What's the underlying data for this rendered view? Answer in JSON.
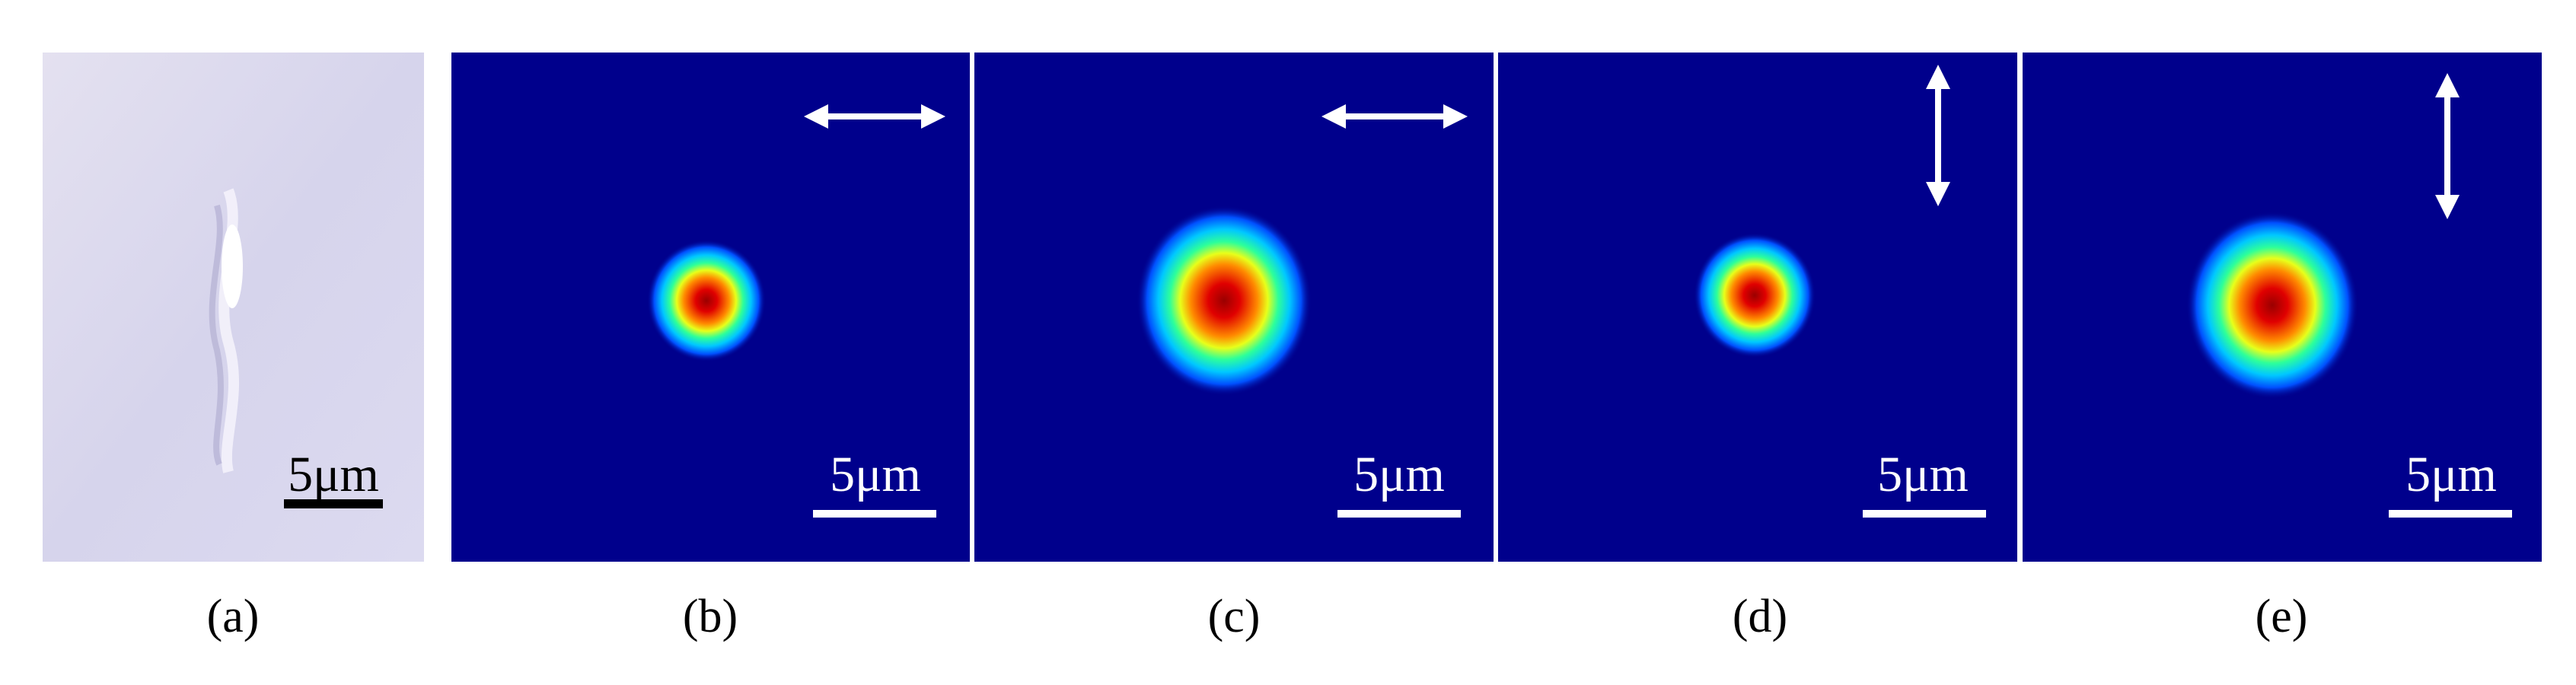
{
  "panels": [
    {
      "label": "(a)",
      "scale_bar": "5μm"
    },
    {
      "label": "(b)",
      "scale_bar": "5μm"
    },
    {
      "label": "(c)",
      "scale_bar": "5μm"
    },
    {
      "label": "(d)",
      "scale_bar": "5μm"
    },
    {
      "label": "(e)",
      "scale_bar": "5μm"
    }
  ]
}
